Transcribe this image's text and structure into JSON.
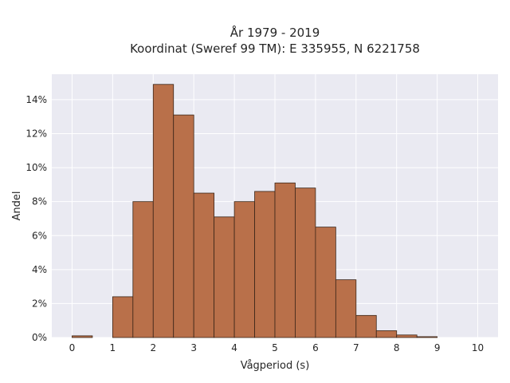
{
  "chart_data": {
    "type": "bar",
    "title_lines": [
      "År 1979 - 2019",
      "Koordinat (Sweref 99 TM): E 335955, N 6221758"
    ],
    "xlabel": "Vågperiod (s)",
    "ylabel": "Andel",
    "xlim": [
      -0.5,
      10.5
    ],
    "ylim": [
      0,
      15.5
    ],
    "xticks": [
      0,
      1,
      2,
      3,
      4,
      5,
      6,
      7,
      8,
      9,
      10
    ],
    "xtick_labels": [
      "0",
      "1",
      "2",
      "3",
      "4",
      "5",
      "6",
      "7",
      "8",
      "9",
      "10"
    ],
    "yticks": [
      0,
      2,
      4,
      6,
      8,
      10,
      12,
      14
    ],
    "ytick_labels": [
      "0%",
      "2%",
      "4%",
      "6%",
      "8%",
      "10%",
      "12%",
      "14%"
    ],
    "bin_width": 0.5,
    "bin_starts": [
      0,
      0.5,
      1,
      1.5,
      2,
      2.5,
      3,
      3.5,
      4,
      4.5,
      5,
      5.5,
      6,
      6.5,
      7,
      7.5,
      8,
      8.5,
      9,
      9.5
    ],
    "values": [
      0.1,
      0,
      2.4,
      8.0,
      14.9,
      13.1,
      8.5,
      7.1,
      8.0,
      8.6,
      9.1,
      8.8,
      6.5,
      3.4,
      1.3,
      0.4,
      0.15,
      0.05,
      0,
      0
    ],
    "bar_color": "#b9704a",
    "bar_edge_color": "#3a2518",
    "background_color": "#eaeaf2",
    "grid": true
  }
}
